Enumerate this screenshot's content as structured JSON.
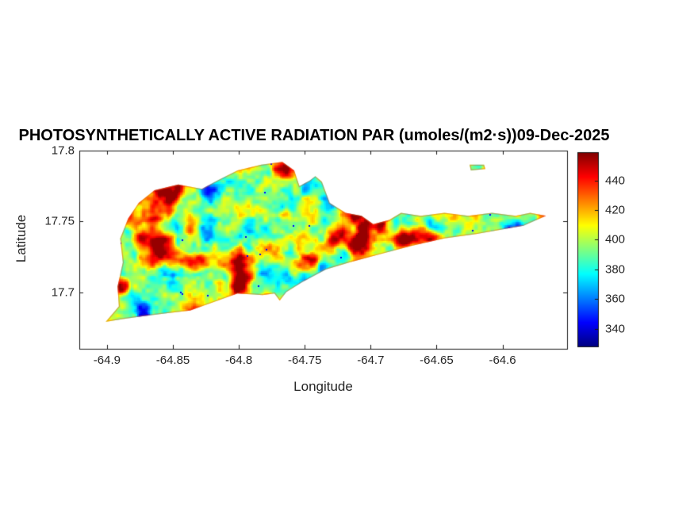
{
  "chart_data": {
    "type": "heatmap",
    "title": "PHOTOSYNTHETICALLY ACTIVE RADIATION PAR (umoles/(m2·s))09-Dec-2025",
    "variable": "Photosynthetically Active Radiation (PAR)",
    "units": "umoles/(m2·s)",
    "date": "09-Dec-2025",
    "xlabel": "Longitude",
    "ylabel": "Latitude",
    "xlim": [
      -64.921,
      -64.551
    ],
    "ylim": [
      17.66,
      17.8
    ],
    "xticks": [
      -64.9,
      -64.85,
      -64.8,
      -64.75,
      -64.7,
      -64.65,
      -64.6
    ],
    "xtick_labels": [
      "-64.9",
      "-64.85",
      "-64.8",
      "-64.75",
      "-64.7",
      "-64.65",
      "-64.6"
    ],
    "yticks": [
      17.7,
      17.75,
      17.8
    ],
    "ytick_labels": [
      "17.7",
      "17.75",
      "17.8"
    ],
    "grid": false,
    "colormap": "jet",
    "caxis": [
      328,
      459
    ],
    "colorbar_ticks": [
      340,
      360,
      380,
      400,
      420,
      440
    ],
    "colorbar_position": "right",
    "value_summary": {
      "typical_background": 400,
      "cool_patches": 378,
      "hotspot_patches": 440,
      "rare_low_specks": 344,
      "approx_range": [
        331,
        456
      ]
    },
    "island_outline_lonlat": [
      [
        -64.901,
        17.679
      ],
      [
        -64.891,
        17.69
      ],
      [
        -64.892,
        17.704
      ],
      [
        -64.888,
        17.721
      ],
      [
        -64.89,
        17.738
      ],
      [
        -64.884,
        17.752
      ],
      [
        -64.876,
        17.763
      ],
      [
        -64.864,
        17.772
      ],
      [
        -64.846,
        17.776
      ],
      [
        -64.828,
        17.773
      ],
      [
        -64.816,
        17.779
      ],
      [
        -64.801,
        17.786
      ],
      [
        -64.783,
        17.79
      ],
      [
        -64.767,
        17.792
      ],
      [
        -64.758,
        17.786
      ],
      [
        -64.754,
        17.775
      ],
      [
        -64.746,
        17.779
      ],
      [
        -64.742,
        17.782
      ],
      [
        -64.737,
        17.778
      ],
      [
        -64.731,
        17.763
      ],
      [
        -64.719,
        17.756
      ],
      [
        -64.707,
        17.754
      ],
      [
        -64.698,
        17.748
      ],
      [
        -64.686,
        17.751
      ],
      [
        -64.677,
        17.756
      ],
      [
        -64.662,
        17.754
      ],
      [
        -64.644,
        17.756
      ],
      [
        -64.626,
        17.754
      ],
      [
        -64.608,
        17.756
      ],
      [
        -64.59,
        17.754
      ],
      [
        -64.579,
        17.756
      ],
      [
        -64.567,
        17.754
      ],
      [
        -64.584,
        17.747
      ],
      [
        -64.602,
        17.744
      ],
      [
        -64.62,
        17.741
      ],
      [
        -64.644,
        17.738
      ],
      [
        -64.668,
        17.733
      ],
      [
        -64.692,
        17.727
      ],
      [
        -64.716,
        17.721
      ],
      [
        -64.734,
        17.716
      ],
      [
        -64.752,
        17.707
      ],
      [
        -64.764,
        17.7
      ],
      [
        -64.769,
        17.694
      ],
      [
        -64.773,
        17.699
      ],
      [
        -64.782,
        17.698
      ],
      [
        -64.801,
        17.699
      ],
      [
        -64.819,
        17.693
      ],
      [
        -64.837,
        17.687
      ],
      [
        -64.855,
        17.685
      ],
      [
        -64.873,
        17.683
      ],
      [
        -64.888,
        17.681
      ]
    ],
    "islet_outline_lonlat": [
      [
        -64.625,
        17.79
      ],
      [
        -64.614,
        17.79
      ],
      [
        -64.613,
        17.787
      ],
      [
        -64.624,
        17.786
      ]
    ]
  }
}
